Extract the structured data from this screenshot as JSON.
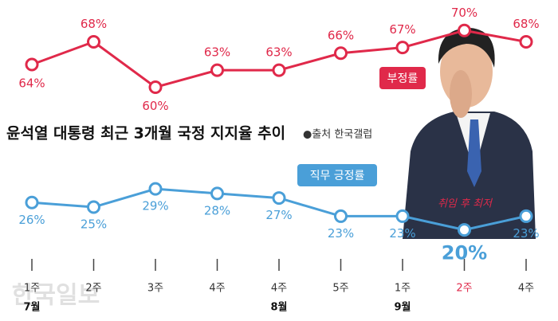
{
  "chart_data": {
    "type": "line",
    "title": "윤석열 대통령 최근 3개월 국정 지지율 추이",
    "source": "●출처 한국갤럽",
    "annotation": "취임 후 최저",
    "watermark": "한국일보",
    "categories": [
      "1주",
      "2주",
      "3주",
      "4주",
      "4주",
      "5주",
      "1주",
      "2주",
      "4주"
    ],
    "month_labels": [
      "7월",
      null,
      null,
      null,
      "8월",
      null,
      "9월",
      null,
      null
    ],
    "highlight_index": 7,
    "series": [
      {
        "name": "부정률",
        "color": "#e0294a",
        "values": [
          64,
          68,
          60,
          63,
          63,
          66,
          67,
          70,
          68
        ],
        "value_labels": [
          "64%",
          "68%",
          "60%",
          "63%",
          "63%",
          "66%",
          "67%",
          "70%",
          "68%"
        ],
        "ylim": [
          56,
          72
        ]
      },
      {
        "name": "직무 긍정률",
        "color": "#4a9fd8",
        "values": [
          26,
          25,
          29,
          28,
          27,
          23,
          23,
          20,
          23
        ],
        "value_labels": [
          "26%",
          "25%",
          "29%",
          "28%",
          "27%",
          "23%",
          "23%",
          "20%",
          "23%"
        ],
        "ylim": [
          18,
          32
        ]
      }
    ]
  }
}
